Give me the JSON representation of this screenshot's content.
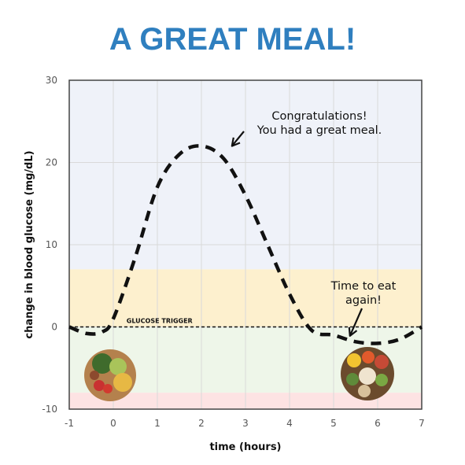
{
  "colors": {
    "title": "#2f7fbf",
    "band_high": "#eff2f9",
    "band_mid": "#fdf0ce",
    "band_low": "#eef6e9",
    "band_bottom": "#fde3e3",
    "curve": "#111111"
  },
  "chart_data": {
    "type": "line",
    "title": "A GREAT MEAL!",
    "xlabel": "time (hours)",
    "ylabel": "change in blood glucose (mg/dL)",
    "xlim": [
      -1,
      7
    ],
    "ylim": [
      -10,
      30
    ],
    "x_ticks": [
      -1,
      0,
      1,
      2,
      3,
      4,
      5,
      6,
      7
    ],
    "y_ticks": [
      -10,
      0,
      10,
      20,
      30
    ],
    "grid": true,
    "bands": [
      {
        "from": 7,
        "to": 30,
        "color": "#eff2f9"
      },
      {
        "from": 0,
        "to": 7,
        "color": "#fdf0ce"
      },
      {
        "from": -8,
        "to": 0,
        "color": "#eef6e9"
      },
      {
        "from": -10,
        "to": -8,
        "color": "#fde3e3"
      }
    ],
    "series": [
      {
        "style": "dashed",
        "x": [
          -1,
          -0.6,
          -0.25,
          0,
          0.5,
          1,
          1.5,
          2,
          2.5,
          3,
          3.5,
          4,
          4.5,
          5,
          5.5,
          6,
          6.5,
          7
        ],
        "y": [
          0,
          -0.8,
          -0.6,
          1,
          8.5,
          17,
          21,
          22,
          20.5,
          16,
          10,
          4,
          -0.4,
          -1,
          -1.8,
          -2,
          -1.5,
          0
        ]
      }
    ],
    "reference_line": {
      "y": 0,
      "label": "GLUCOSE TRIGGER"
    },
    "annotations": [
      {
        "lines": [
          "Congratulations!",
          "You had a great meal."
        ],
        "arrow_to": [
          2.3,
          22
        ]
      },
      {
        "lines": [
          "Time to eat",
          "again!"
        ],
        "arrow_to": [
          5.3,
          -0.8
        ]
      }
    ]
  }
}
